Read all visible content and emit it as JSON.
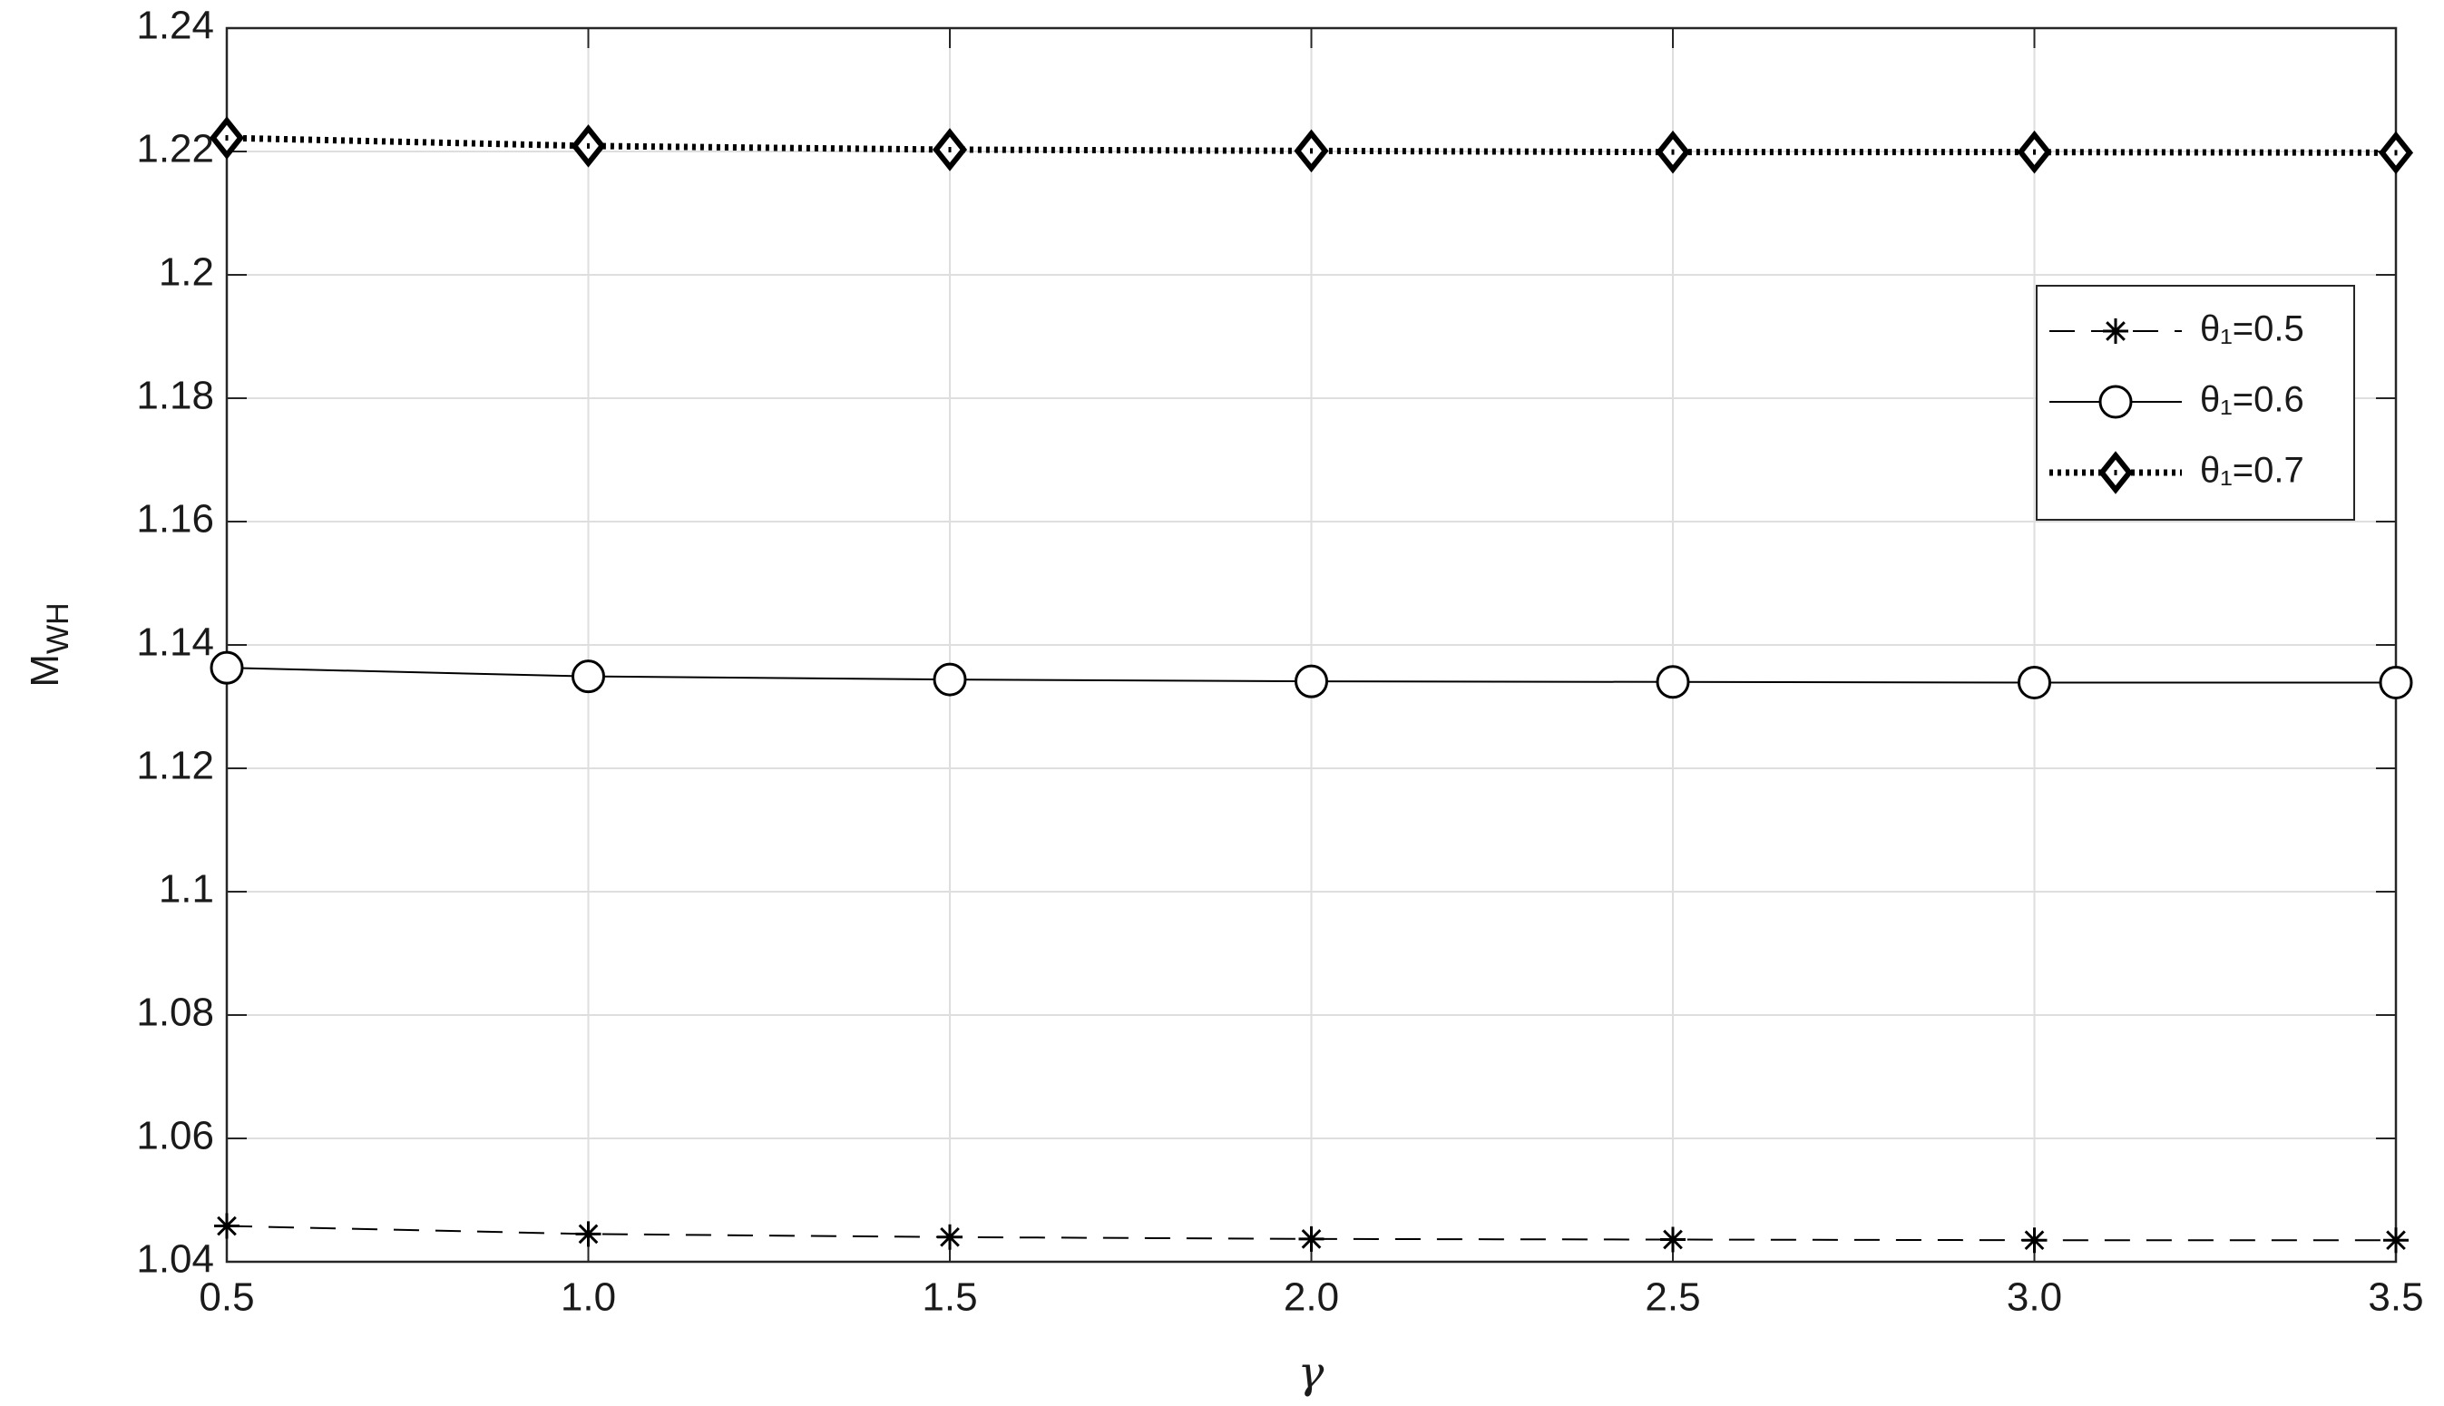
{
  "chart_data": {
    "type": "line",
    "x_label": "γ",
    "y_label": {
      "text": "M",
      "subscript": "WH"
    },
    "x": [
      0.5,
      1.0,
      1.5,
      2.0,
      2.5,
      3.0,
      3.5
    ],
    "series": [
      {
        "name": "θ₁=0.5",
        "color": "#000000",
        "dash": "dashed",
        "marker": "star",
        "values": [
          1.0458,
          1.0445,
          1.044,
          1.0437,
          1.0436,
          1.0435,
          1.0435
        ]
      },
      {
        "name": "θ₁=0.6",
        "color": "#000000",
        "dash": "solid",
        "marker": "circle",
        "values": [
          1.1363,
          1.1349,
          1.1344,
          1.1341,
          1.134,
          1.1339,
          1.1339
        ]
      },
      {
        "name": "θ₁=0.7",
        "color": "#000000",
        "dash": "dotted",
        "marker": "diamond",
        "values": [
          1.2222,
          1.2209,
          1.2203,
          1.2201,
          1.2199,
          1.2199,
          1.2198
        ]
      }
    ],
    "xlim": [
      0.5,
      3.5
    ],
    "xticks": [
      0.5,
      {
        "value": 1,
        "label": "1.0"
      },
      1.5,
      {
        "value": 2,
        "label": "2.0"
      },
      2.5,
      {
        "value": 3,
        "label": "3.0"
      },
      3.5
    ],
    "ylim": [
      1.04,
      1.24
    ],
    "yticks": [
      1.04,
      1.06,
      1.08,
      1.1,
      1.12,
      1.14,
      1.16,
      1.18,
      1.2,
      1.22,
      1.24
    ],
    "grid": true,
    "legend": "upper-right"
  }
}
